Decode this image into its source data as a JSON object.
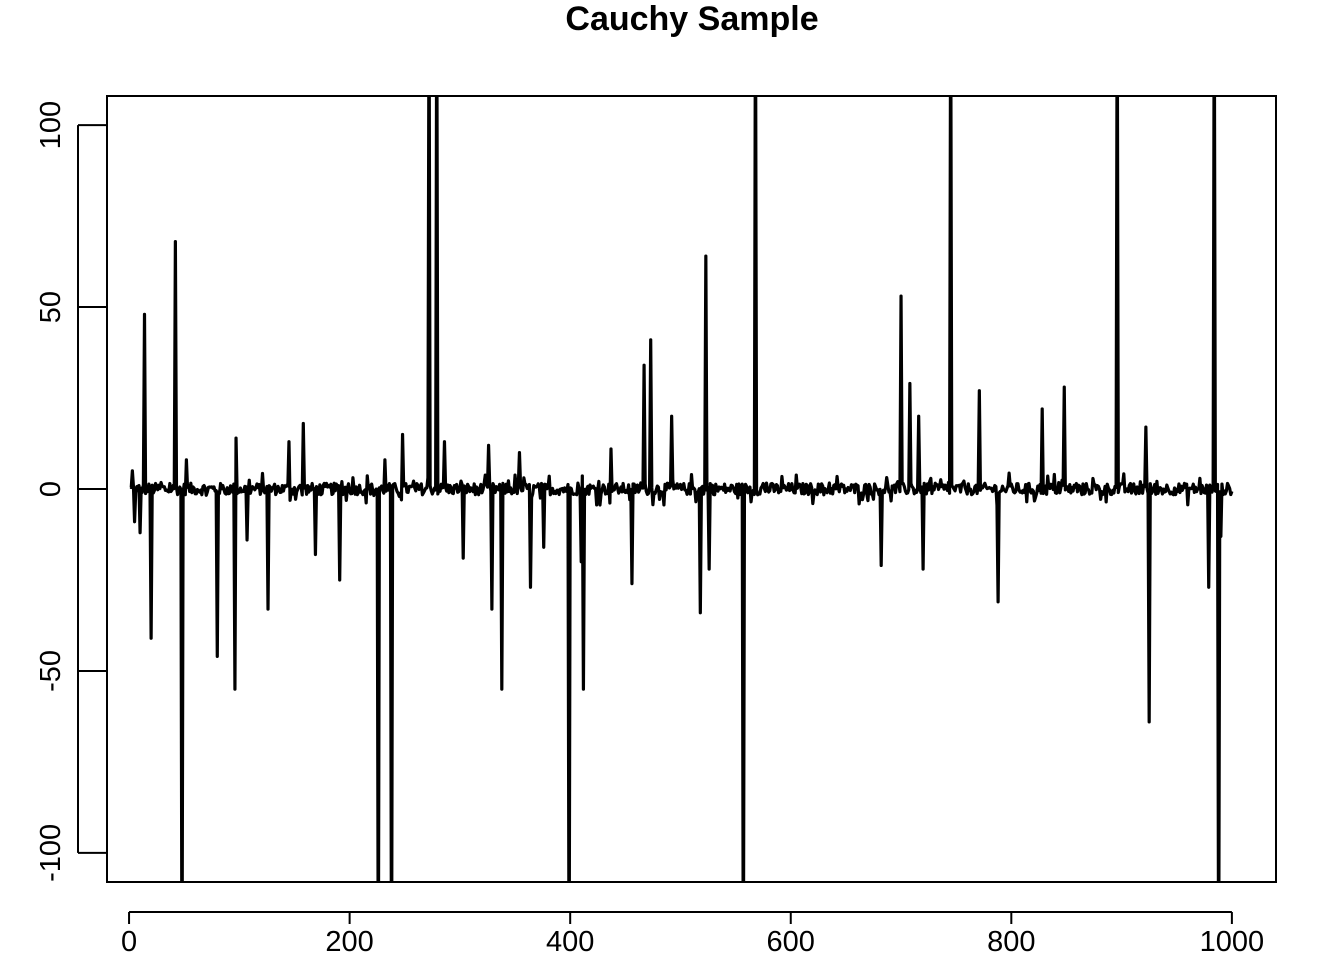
{
  "chart_data": {
    "type": "line",
    "title": "Cauchy Sample",
    "xlabel": "",
    "ylabel": "",
    "xlim": [
      -20,
      1040
    ],
    "ylim": [
      -108,
      108
    ],
    "x_ticks": [
      "0",
      "200",
      "400",
      "600",
      "800",
      "1000"
    ],
    "x_tick_values": [
      0,
      200,
      400,
      600,
      800,
      1000
    ],
    "y_ticks": [
      "-100",
      "-50",
      "0",
      "50",
      "100"
    ],
    "y_tick_values": [
      -100,
      -50,
      0,
      50,
      100
    ],
    "grid": false,
    "line_color": "#000000",
    "series_spikes": [
      {
        "x": 3,
        "y": 5
      },
      {
        "x": 5,
        "y": -9
      },
      {
        "x": 10,
        "y": -12
      },
      {
        "x": 14,
        "y": 48
      },
      {
        "x": 20,
        "y": -41
      },
      {
        "x": 42,
        "y": 68
      },
      {
        "x": 48,
        "y": -140
      },
      {
        "x": 52,
        "y": 8
      },
      {
        "x": 80,
        "y": -46
      },
      {
        "x": 96,
        "y": -55
      },
      {
        "x": 97,
        "y": 14
      },
      {
        "x": 107,
        "y": -14
      },
      {
        "x": 126,
        "y": -33
      },
      {
        "x": 145,
        "y": 13
      },
      {
        "x": 158,
        "y": 18
      },
      {
        "x": 169,
        "y": -18
      },
      {
        "x": 191,
        "y": -25
      },
      {
        "x": 226,
        "y": -140
      },
      {
        "x": 232,
        "y": 8
      },
      {
        "x": 238,
        "y": -140
      },
      {
        "x": 248,
        "y": 15
      },
      {
        "x": 272,
        "y": 140
      },
      {
        "x": 279,
        "y": 140
      },
      {
        "x": 286,
        "y": 13
      },
      {
        "x": 303,
        "y": -19
      },
      {
        "x": 326,
        "y": 12
      },
      {
        "x": 329,
        "y": -33
      },
      {
        "x": 338,
        "y": -55
      },
      {
        "x": 354,
        "y": 10
      },
      {
        "x": 364,
        "y": -27
      },
      {
        "x": 376,
        "y": -16
      },
      {
        "x": 399,
        "y": -140
      },
      {
        "x": 410,
        "y": -20
      },
      {
        "x": 412,
        "y": -55
      },
      {
        "x": 437,
        "y": 11
      },
      {
        "x": 456,
        "y": -26
      },
      {
        "x": 467,
        "y": 34
      },
      {
        "x": 473,
        "y": 41
      },
      {
        "x": 492,
        "y": 20
      },
      {
        "x": 518,
        "y": -34
      },
      {
        "x": 523,
        "y": 64
      },
      {
        "x": 526,
        "y": -22
      },
      {
        "x": 557,
        "y": -140
      },
      {
        "x": 568,
        "y": 140
      },
      {
        "x": 682,
        "y": -21
      },
      {
        "x": 700,
        "y": 53
      },
      {
        "x": 708,
        "y": 29
      },
      {
        "x": 716,
        "y": 20
      },
      {
        "x": 720,
        "y": -22
      },
      {
        "x": 745,
        "y": 140
      },
      {
        "x": 771,
        "y": 27
      },
      {
        "x": 788,
        "y": -31
      },
      {
        "x": 828,
        "y": 22
      },
      {
        "x": 848,
        "y": 28
      },
      {
        "x": 896,
        "y": 140
      },
      {
        "x": 922,
        "y": 17
      },
      {
        "x": 925,
        "y": -64
      },
      {
        "x": 979,
        "y": -27
      },
      {
        "x": 984,
        "y": 140
      },
      {
        "x": 988,
        "y": -140
      },
      {
        "x": 990,
        "y": -13
      }
    ]
  }
}
